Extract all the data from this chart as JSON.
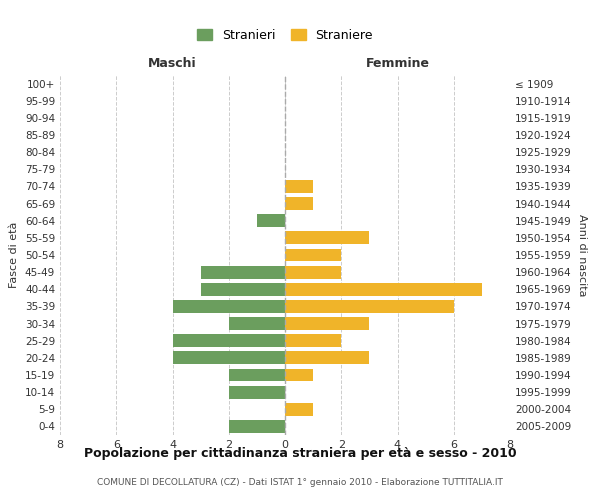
{
  "age_groups": [
    "100+",
    "95-99",
    "90-94",
    "85-89",
    "80-84",
    "75-79",
    "70-74",
    "65-69",
    "60-64",
    "55-59",
    "50-54",
    "45-49",
    "40-44",
    "35-39",
    "30-34",
    "25-29",
    "20-24",
    "15-19",
    "10-14",
    "5-9",
    "0-4"
  ],
  "birth_years": [
    "≤ 1909",
    "1910-1914",
    "1915-1919",
    "1920-1924",
    "1925-1929",
    "1930-1934",
    "1935-1939",
    "1940-1944",
    "1945-1949",
    "1950-1954",
    "1955-1959",
    "1960-1964",
    "1965-1969",
    "1970-1974",
    "1975-1979",
    "1980-1984",
    "1985-1989",
    "1990-1994",
    "1995-1999",
    "2000-2004",
    "2005-2009"
  ],
  "maschi": [
    0,
    0,
    0,
    0,
    0,
    0,
    0,
    0,
    1,
    0,
    0,
    3,
    3,
    4,
    2,
    4,
    4,
    2,
    2,
    0,
    2
  ],
  "femmine": [
    0,
    0,
    0,
    0,
    0,
    0,
    1,
    1,
    0,
    3,
    2,
    2,
    7,
    6,
    3,
    2,
    3,
    1,
    0,
    1,
    0
  ],
  "color_maschi": "#6b9e5e",
  "color_femmine": "#f0b429",
  "background_color": "#ffffff",
  "grid_color": "#cccccc",
  "title": "Popolazione per cittadinanza straniera per età e sesso - 2010",
  "subtitle": "COMUNE DI DECOLLATURA (CZ) - Dati ISTAT 1° gennaio 2010 - Elaborazione TUTTITALIA.IT",
  "xlabel_left": "Maschi",
  "xlabel_right": "Femmine",
  "ylabel_left": "Fasce di età",
  "ylabel_right": "Anni di nascita",
  "legend_maschi": "Stranieri",
  "legend_femmine": "Straniere",
  "xlim": 8
}
